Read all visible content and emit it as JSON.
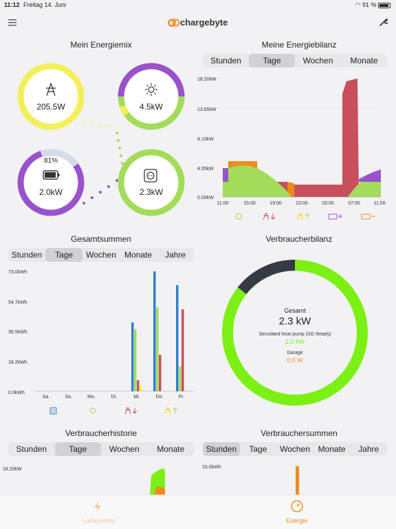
{
  "status": {
    "time": "11:12",
    "date": "Freitag 14. Juni",
    "battery": "91 %"
  },
  "brand": {
    "name": "chargebyte"
  },
  "energiemix": {
    "title": "Mein Energiemix",
    "grid": "205.5W",
    "solar": "4.5kW",
    "battery_pct": "81%",
    "battery": "2.0kW",
    "consumer": "2.3kW"
  },
  "energiebilanz": {
    "title": "Meine Energiebilanz",
    "tabs": [
      "Stunden",
      "Tage",
      "Wochen",
      "Monate"
    ],
    "selected": "Tage",
    "y_labels": [
      "18.20kW",
      "13.65kW",
      "9.10kW",
      "4.55kW",
      "0.00kW"
    ],
    "x_labels": [
      "11:00",
      "15:00",
      "19:00",
      "23:00",
      "03:00",
      "07:00",
      "11:00"
    ]
  },
  "gesamtsummen": {
    "title": "Gesamtsummen",
    "tabs": [
      "Stunden",
      "Tage",
      "Wochen",
      "Monate",
      "Jahre"
    ],
    "selected": "Tage",
    "y_labels": [
      "73.0kWh",
      "54.7kWh",
      "36.5kWh",
      "18.2kWh",
      "0.0kWh"
    ],
    "x_labels": [
      "Sa.",
      "So.",
      "Mo.",
      "Di.",
      "Mi.",
      "Do.",
      "Fr."
    ]
  },
  "verbraucherbilanz": {
    "title": "Verbraucherbilanz",
    "total_label": "Gesamt",
    "total_value": "2.3 kW",
    "item1_label": "Simulated heat pump (SG Ready)",
    "item1_value": "2.0 kW",
    "item2_label": "Garage",
    "item2_value": "0.0 W"
  },
  "verbraucherhistorie": {
    "title": "Verbraucherhistorie",
    "tabs": [
      "Stunden",
      "Tage",
      "Wochen",
      "Monate"
    ],
    "selected": "Tage",
    "y_labels": [
      "18.20kW"
    ]
  },
  "verbrauchersummen": {
    "title": "Verbrauchersummen",
    "tabs": [
      "Stunden",
      "Tage",
      "Wochen",
      "Monate",
      "Jahre"
    ],
    "selected": "Stunden",
    "y_labels": [
      "15.0kWh"
    ]
  },
  "tabbar": {
    "tab1": "Ladepunkte",
    "tab2": "Energie"
  },
  "colors": {
    "purple": "#9a52cc",
    "green": "#a3dc5a",
    "yellow": "#f2f05a",
    "red": "#c84f5c",
    "blue": "#2f7fcf",
    "orange": "#f08a1c",
    "lime": "#7cf014"
  }
}
